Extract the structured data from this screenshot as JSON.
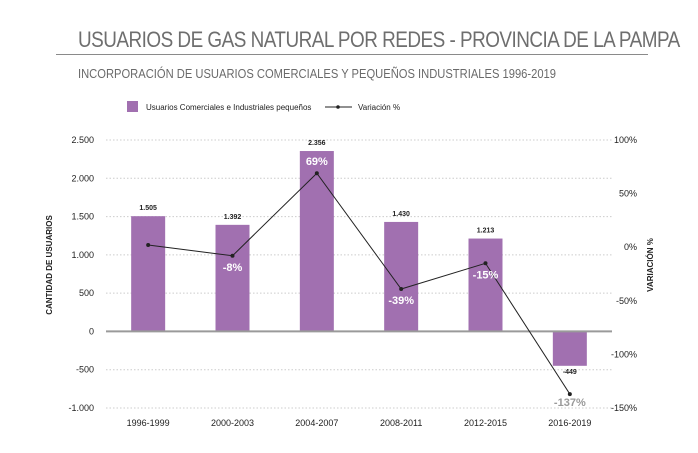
{
  "header": {
    "title": "USUARIOS DE GAS NATURAL POR REDES - PROVINCIA DE LA PAMPA",
    "subtitle": "INCORPORACIÓN DE USUARIOS COMERCIALES Y PEQUEÑOS INDUSTRIALES 1996-2019"
  },
  "colors": {
    "bar": "#A170B0",
    "line": "#222222",
    "zero_line": "#9a9a9a",
    "grid": "#cccccc"
  },
  "chart_data": {
    "type": "bar",
    "title": "USUARIOS DE GAS NATURAL POR REDES - PROVINCIA DE LA PAMPA",
    "subtitle": "INCORPORACIÓN DE USUARIOS COMERCIALES Y PEQUEÑOS INDUSTRIALES 1996-2019",
    "categories": [
      "1996-1999",
      "2000-2003",
      "2004-2007",
      "2008-2011",
      "2012-2015",
      "2016-2019"
    ],
    "series": [
      {
        "name": "Usuarios Comerciales e Industriales pequeños",
        "type": "bar",
        "axis": "left",
        "values": [
          1505,
          1392,
          2356,
          1430,
          1213,
          -449
        ],
        "labels": [
          "1.505",
          "1.392",
          "2.356",
          "1.430",
          "1.213",
          "-449"
        ]
      },
      {
        "name": "Variación %",
        "type": "line",
        "axis": "right",
        "values": [
          2,
          -8,
          69,
          -39,
          -15,
          -137
        ],
        "labels": [
          "",
          "-8%",
          "69%",
          "-39%",
          "-15%",
          "-137%"
        ]
      }
    ],
    "ylabel": "CANTIDAD DE USUARIOS",
    "y2label": "VARIACIÓN %",
    "xlabel": "",
    "ylim": [
      -1000,
      2500
    ],
    "y2lim": [
      -150,
      100
    ],
    "yticks": [
      2500,
      2000,
      1500,
      1000,
      500,
      0,
      -500,
      -1000
    ],
    "ytick_labels": [
      "2.500",
      "2.000",
      "1.500",
      "1.000",
      "500",
      "0",
      "-500",
      "-1.000"
    ],
    "y2ticks": [
      100,
      50,
      0,
      -50,
      -100,
      -150
    ],
    "y2tick_labels": [
      "100%",
      "50%",
      "0%",
      "-50%",
      "-100%",
      "-150%"
    ],
    "grid": true,
    "legend": "top-left"
  }
}
